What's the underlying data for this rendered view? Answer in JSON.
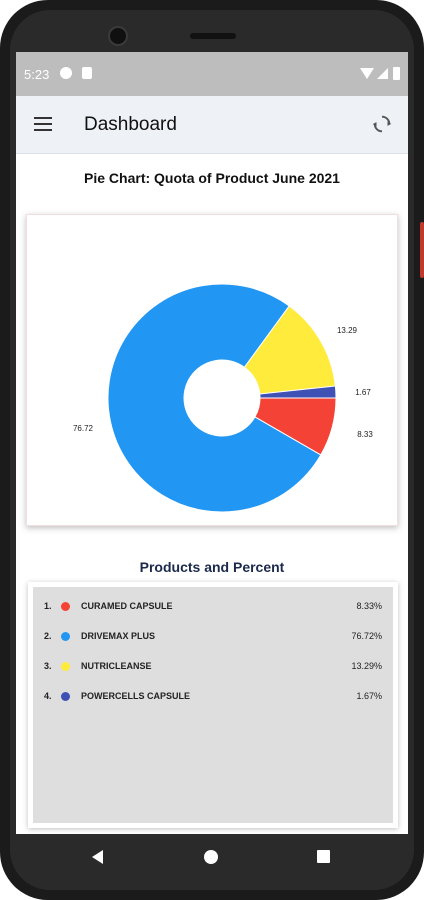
{
  "status_bar": {
    "time": "5:23",
    "icons": [
      "g-icon",
      "sd-card-icon",
      "wifi-icon",
      "signal-icon",
      "battery-icon"
    ]
  },
  "app_bar": {
    "title": "Dashboard",
    "menu_icon": "hamburger-menu-icon",
    "refresh_icon": "refresh-icon"
  },
  "chart_section": {
    "title": "Pie Chart: Quota of Product June 2021"
  },
  "chart_data": {
    "type": "pie",
    "title": "Pie Chart: Quota of Product June 2021",
    "donut": true,
    "categories": [
      "CURAMED CAPSULE",
      "DRIVEMAX PLUS",
      "NUTRICLEANSE",
      "POWERCELLS CAPSULE"
    ],
    "values": [
      8.33,
      76.72,
      13.29,
      1.67
    ],
    "labels": [
      "8.33",
      "76.72",
      "13.29",
      "1.67"
    ],
    "colors": [
      "#f44336",
      "#2196f3",
      "#ffeb3b",
      "#3f51b5"
    ]
  },
  "products": {
    "title": "Products and Percent",
    "items": [
      {
        "index": "1.",
        "name": "CURAMED CAPSULE",
        "percent": "8.33%",
        "color": "#f44336"
      },
      {
        "index": "2.",
        "name": "DRIVEMAX PLUS",
        "percent": "76.72%",
        "color": "#2196f3"
      },
      {
        "index": "3.",
        "name": "NUTRICLEANSE",
        "percent": "13.29%",
        "color": "#ffeb3b"
      },
      {
        "index": "4.",
        "name": "POWERCELLS CAPSULE",
        "percent": "1.67%",
        "color": "#3f51b5"
      }
    ]
  },
  "nav_bar": {
    "icons": [
      "back-icon",
      "home-icon",
      "recents-icon"
    ]
  }
}
